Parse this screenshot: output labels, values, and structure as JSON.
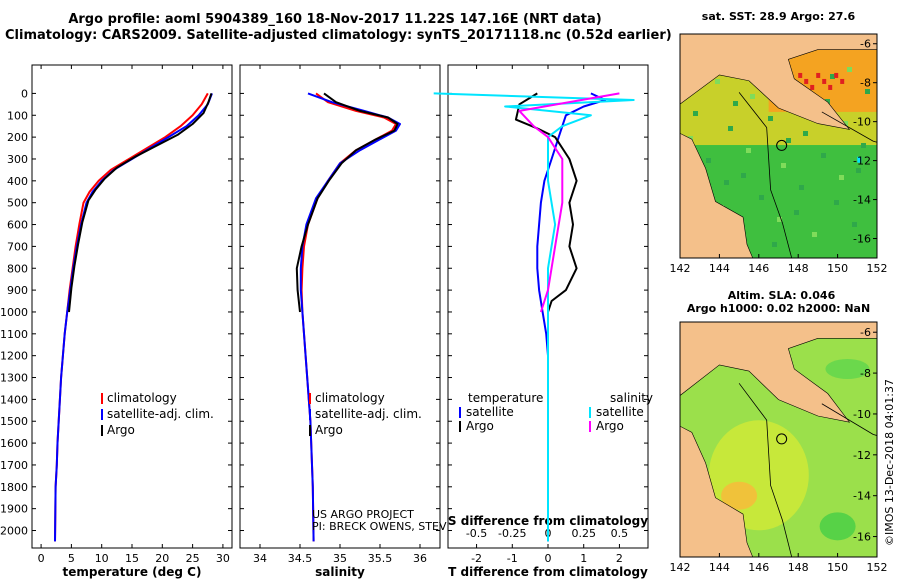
{
  "title_line1": "Argo profile: aoml 5904389_160 18-Nov-2017 11.22S 147.16E (NRT data)",
  "title_line2": "Climatology: CARS2009. Satellite-adjusted climatology: synTS_20171118.nc (0.52d earlier)",
  "colors": {
    "climatology": "#ff0000",
    "satellite": "#0000ff",
    "argo": "#000000",
    "sal_sat": "#00e5ff",
    "sal_argo": "#ff00ff",
    "land": "#f4c08a"
  },
  "depth_axis": {
    "ticks": [
      0,
      100,
      200,
      300,
      400,
      500,
      600,
      700,
      800,
      900,
      1000,
      1100,
      1200,
      1300,
      1400,
      1500,
      1600,
      1700,
      1800,
      1900,
      2000
    ],
    "range": [
      -130,
      2080
    ]
  },
  "chart_data": [
    {
      "type": "line",
      "name": "temperature",
      "xlabel": "temperature (deg C)",
      "xlim": [
        -1.5,
        31.5
      ],
      "xticks": [
        0,
        5,
        10,
        15,
        20,
        25,
        30
      ],
      "series": [
        {
          "name": "climatology",
          "color": "#ff0000",
          "x": [
            27.5,
            26.5,
            25,
            23,
            20.5,
            17.5,
            14.5,
            11.5,
            9.5,
            8,
            7,
            6.3,
            5.7,
            5.2,
            4.7,
            4.3,
            3.9,
            3.6,
            3.3,
            3.1,
            2.9,
            2.7,
            2.6,
            2.4,
            2.3
          ],
          "y": [
            0,
            50,
            100,
            150,
            200,
            250,
            300,
            350,
            400,
            450,
            500,
            600,
            700,
            800,
            900,
            1000,
            1100,
            1200,
            1300,
            1400,
            1500,
            1600,
            1700,
            1800,
            2050
          ]
        },
        {
          "name": "satellite-adj. clim.",
          "color": "#0000ff",
          "x": [
            28.2,
            27.5,
            26,
            24,
            21,
            18,
            15,
            12,
            10,
            8.5,
            7.5,
            6.6,
            5.9,
            5.3,
            4.8,
            4.3,
            3.9,
            3.6,
            3.3,
            3.1,
            2.9,
            2.7,
            2.6,
            2.4,
            2.3
          ],
          "y": [
            0,
            50,
            100,
            150,
            200,
            250,
            300,
            350,
            400,
            450,
            500,
            600,
            700,
            800,
            900,
            1000,
            1100,
            1200,
            1300,
            1400,
            1500,
            1600,
            1700,
            1800,
            2050
          ]
        },
        {
          "name": "Argo",
          "color": "#000000",
          "x": [
            28.1,
            27.6,
            26.8,
            25,
            22.5,
            19,
            15.5,
            12.5,
            10.5,
            9,
            7.8,
            6.8,
            6.1,
            5.5,
            5,
            4.6
          ],
          "y": [
            0,
            40,
            90,
            140,
            190,
            240,
            290,
            340,
            390,
            440,
            490,
            590,
            690,
            790,
            890,
            1000
          ]
        }
      ],
      "legend": [
        "climatology",
        "satellite-adj. clim.",
        "Argo"
      ]
    },
    {
      "type": "line",
      "name": "salinity",
      "xlabel": "salinity",
      "xlim": [
        33.75,
        36.25
      ],
      "xticks": [
        34,
        34.5,
        35,
        35.5,
        36
      ],
      "xticklabels": [
        "34",
        "34.5",
        "35",
        "35.5",
        "36"
      ],
      "series": [
        {
          "name": "climatology",
          "color": "#ff0000",
          "x": [
            34.7,
            34.85,
            35.2,
            35.55,
            35.7,
            35.65,
            35.45,
            35.2,
            35.0,
            34.85,
            34.72,
            34.6,
            34.55,
            34.53,
            34.52,
            34.53,
            34.55,
            34.57,
            34.59,
            34.61,
            34.63,
            34.64,
            34.65,
            34.66,
            34.67
          ],
          "y": [
            0,
            40,
            80,
            110,
            140,
            170,
            210,
            260,
            320,
            400,
            480,
            600,
            700,
            800,
            900,
            1000,
            1100,
            1200,
            1300,
            1400,
            1500,
            1600,
            1700,
            1800,
            2050
          ]
        },
        {
          "name": "satellite-adj. clim.",
          "color": "#0000ff",
          "x": [
            34.6,
            34.9,
            35.3,
            35.6,
            35.75,
            35.7,
            35.5,
            35.25,
            35.0,
            34.85,
            34.7,
            34.58,
            34.53,
            34.51,
            34.51,
            34.53,
            34.55,
            34.57,
            34.59,
            34.61,
            34.63,
            34.64,
            34.65,
            34.66,
            34.67
          ],
          "y": [
            0,
            40,
            80,
            110,
            140,
            170,
            210,
            260,
            320,
            400,
            480,
            600,
            700,
            800,
            900,
            1000,
            1100,
            1200,
            1300,
            1400,
            1500,
            1600,
            1700,
            1800,
            2050
          ]
        },
        {
          "name": "Argo",
          "color": "#000000",
          "x": [
            34.8,
            34.95,
            35.25,
            35.6,
            35.72,
            35.68,
            35.45,
            35.2,
            35.02,
            34.86,
            34.72,
            34.6,
            34.52,
            34.46,
            34.47,
            34.5
          ],
          "y": [
            0,
            40,
            80,
            110,
            140,
            170,
            210,
            260,
            320,
            400,
            480,
            600,
            700,
            800,
            900,
            1000
          ]
        }
      ],
      "legend": [
        "climatology",
        "satellite-adj. clim.",
        "Argo"
      ],
      "credit_line1": "US ARGO PROJECT",
      "credit_line2": "PI: BRECK OWENS, STEVE JAYNE, P.E. ROBBINS"
    },
    {
      "type": "line",
      "name": "difference",
      "xlabel": "T difference from climatology",
      "xlabel_top": "S difference from climatology",
      "xlim": [
        -2.8,
        2.8
      ],
      "xticks": [
        -2,
        -1,
        0,
        1,
        2
      ],
      "top_ticks": [
        -0.5,
        -0.25,
        0,
        0.25,
        0.5
      ],
      "top_ticklabels": [
        "-0.5",
        "-0.25",
        "0",
        "0.25",
        "0.5"
      ],
      "series": [
        {
          "name": "temperature satellite",
          "color": "#0000ff",
          "x": [
            1.2,
            1.6,
            1.0,
            0.5,
            0.4,
            0.3,
            0.1,
            -0.1,
            -0.2,
            -0.25,
            -0.3,
            -0.3,
            -0.25,
            -0.15,
            -0.05,
            0,
            0,
            0,
            0,
            0,
            0
          ],
          "y": [
            0,
            30,
            60,
            100,
            150,
            200,
            300,
            400,
            500,
            600,
            700,
            800,
            900,
            1000,
            1100,
            1200,
            1300,
            1500,
            1700,
            1900,
            2050
          ]
        },
        {
          "name": "temperature Argo",
          "color": "#000000",
          "x": [
            -0.3,
            -0.8,
            -0.9,
            -0.3,
            0.2,
            0.6,
            0.8,
            0.6,
            0.7,
            0.6,
            0.8,
            0.5,
            0.1,
            0.0
          ],
          "y": [
            0,
            50,
            120,
            160,
            200,
            300,
            400,
            500,
            600,
            700,
            800,
            900,
            950,
            1000
          ]
        },
        {
          "name": "salinity satellite",
          "color": "#00e5ff",
          "x": [
            -0.8,
            0.6,
            -0.3,
            0.3,
            0.1,
            0.0,
            0.0,
            0.05,
            0.0,
            0.0,
            0.0,
            0.0,
            0.0
          ],
          "y": [
            0,
            30,
            60,
            100,
            150,
            200,
            400,
            600,
            800,
            1000,
            1400,
            1800,
            2050
          ]
        },
        {
          "name": "salinity Argo",
          "color": "#ff00ff",
          "x": [
            0.5,
            -0.2,
            -0.1,
            0.0,
            0.1,
            0.1,
            0.05,
            0.0,
            -0.05
          ],
          "y": [
            0,
            80,
            150,
            200,
            300,
            500,
            700,
            900,
            1000
          ]
        }
      ],
      "legend_left_title": "temperature",
      "legend_right_title": "salinity",
      "legend_left": [
        "satellite",
        "Argo"
      ],
      "legend_right": [
        "satellite",
        "Argo"
      ]
    }
  ],
  "maps": [
    {
      "name": "sst-map",
      "header": "sat. SST: 28.9 Argo: 27.6",
      "xticks": [
        "142",
        "144",
        "146",
        "148",
        "150",
        "152"
      ],
      "yticks": [
        "-6",
        "-8",
        "-10",
        "-12",
        "-14",
        "-16"
      ]
    },
    {
      "name": "sla-map",
      "header1": "Altim. SLA: 0.046",
      "header2": "Argo h1000: 0.02 h2000: NaN",
      "xticks": [
        "142",
        "144",
        "146",
        "148",
        "150",
        "152"
      ],
      "yticks": [
        "-6",
        "-8",
        "-10",
        "-12",
        "-14",
        "-16"
      ]
    }
  ],
  "watermark": "©IMOS 13-Dec-2018 04:01:37"
}
